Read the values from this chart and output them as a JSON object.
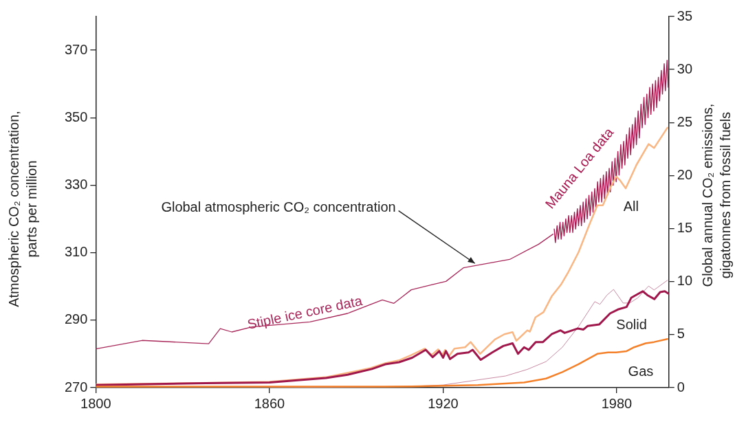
{
  "chart_data": {
    "type": "line",
    "xlim": [
      1800,
      1998
    ],
    "xticks": [
      1800,
      1860,
      1920,
      1980
    ],
    "ylim": [
      270,
      380
    ],
    "yticks": [
      270,
      290,
      310,
      330,
      350,
      370
    ],
    "y2lim": [
      0,
      35
    ],
    "y2ticks": [
      0,
      5,
      10,
      15,
      20,
      25,
      30,
      35
    ],
    "ylabel": "Atmospheric CO₂ concentration, parts per million",
    "y2label": "Global annual CO₂ emissions, gigatonnes from fossil fuels",
    "annotations": [
      {
        "text": "Global atmospheric CO₂ concentration",
        "x": 1931,
        "y": 306
      }
    ],
    "series": [
      {
        "name": "Stiple ice core data",
        "color": "#a8285a",
        "x": [
          1800,
          1816,
          1839,
          1843,
          1847,
          1854,
          1874,
          1887,
          1899,
          1903,
          1906,
          1909,
          1916,
          1921,
          1927,
          1943,
          1953,
          1958
        ],
        "values": [
          281.5,
          284,
          283,
          287.5,
          286.5,
          288,
          289.5,
          292,
          296,
          295,
          297,
          299,
          300.5,
          301.5,
          305.5,
          308,
          312.5,
          315.5
        ]
      },
      {
        "name": "Mauna Loa data",
        "color": "#a8184e",
        "x": [
          1958.4,
          1958.8,
          1959.4,
          1959.8,
          1960.4,
          1960.8,
          1961.4,
          1961.8,
          1962.4,
          1962.8,
          1963.4,
          1963.8,
          1964.4,
          1964.8,
          1965.4,
          1965.8,
          1966.4,
          1966.8,
          1967.4,
          1967.8,
          1968.4,
          1968.8,
          1969.4,
          1969.8,
          1970.4,
          1970.8,
          1971.4,
          1971.8,
          1972.4,
          1972.8,
          1973.4,
          1973.8,
          1974.4,
          1974.8,
          1975.4,
          1975.8,
          1976.4,
          1976.8,
          1977.4,
          1977.8,
          1978.4,
          1978.8,
          1979.4,
          1979.8,
          1980.4,
          1980.8,
          1981.4,
          1981.8,
          1982.4,
          1982.8,
          1983.4,
          1983.8,
          1984.4,
          1984.8,
          1985.4,
          1985.8,
          1986.4,
          1986.8,
          1987.4,
          1987.8,
          1988.4,
          1988.8,
          1989.4,
          1989.8,
          1990.4,
          1990.8,
          1991.4,
          1991.8,
          1992.4,
          1992.8,
          1993.4,
          1993.8,
          1994.4,
          1994.8,
          1995.4,
          1995.8,
          1996.4,
          1996.8,
          1997.4,
          1997.8
        ],
        "values": [
          317,
          313,
          318,
          314,
          319,
          314,
          319,
          315,
          320,
          316,
          321,
          316,
          321,
          316,
          322,
          317,
          323,
          318,
          324,
          318,
          325,
          319,
          326,
          320,
          327,
          321,
          328,
          322,
          329,
          323,
          331,
          325,
          332,
          325,
          333,
          326,
          334,
          327,
          335,
          328,
          337,
          330,
          338,
          331,
          340,
          333,
          342,
          335,
          343,
          336,
          345,
          338,
          347,
          339,
          348,
          341,
          350,
          342,
          352,
          344,
          354,
          347,
          356,
          348,
          357,
          350,
          359,
          351,
          360,
          352,
          361,
          353,
          362,
          355,
          364,
          357,
          366,
          358,
          367,
          359
        ]
      },
      {
        "name": "All",
        "color": "#f9b582",
        "axis": "y2",
        "x": [
          1800,
          1840,
          1860,
          1880,
          1895,
          1900,
          1905,
          1909,
          1913.7,
          1916,
          1918.3,
          1919.7,
          1920.7,
          1922,
          1923.9,
          1927.6,
          1929.5,
          1932.8,
          1937.9,
          1941.2,
          1944,
          1945.3,
          1949.1,
          1950,
          1951.9,
          1954.7,
          1957.5,
          1960.7,
          1963.1,
          1966.8,
          1970.5,
          1973.3,
          1975.2,
          1977.9,
          1979.8,
          1981.2,
          1983.1,
          1986.8,
          1991,
          1992.9,
          1997.5
        ],
        "values": [
          0.3,
          0.45,
          0.55,
          1,
          1.85,
          2.3,
          2.6,
          3.07,
          3.68,
          3.07,
          3.61,
          3.07,
          3.56,
          2.95,
          3.68,
          3.81,
          4.3,
          3.19,
          4.54,
          5.04,
          5.23,
          4.42,
          5.4,
          5.28,
          6.63,
          7.12,
          8.6,
          9.7,
          10.81,
          12.77,
          15.35,
          17.19,
          17.19,
          18.91,
          19.9,
          19.53,
          18.79,
          21,
          22.97,
          22.6,
          24.51
        ]
      },
      {
        "color": "#c98aa2",
        "axis": "y2",
        "x": [
          1860,
          1900,
          1909,
          1920,
          1932.3,
          1941.6,
          1949.1,
          1955.6,
          1961.2,
          1966.8,
          1972.4,
          1974.2,
          1976.6,
          1978.9,
          1982.2,
          1984.5,
          1987.3,
          1991,
          1992.9,
          1997.5
        ],
        "values": [
          0,
          0.1,
          0.12,
          0.25,
          0.74,
          1.1,
          1.72,
          2.46,
          3.81,
          5.77,
          8.11,
          7.86,
          8.72,
          9.26,
          7.98,
          7.98,
          8.47,
          9.58,
          9.21,
          10.12
        ]
      },
      {
        "name": "Solid",
        "color": "#a0174b",
        "axis": "y2",
        "x": [
          1800,
          1838,
          1860,
          1879.5,
          1887,
          1895.4,
          1900,
          1904.8,
          1909.3,
          1914,
          1916.4,
          1918.7,
          1920,
          1921,
          1922.4,
          1925,
          1928.8,
          1930.2,
          1933,
          1937,
          1940.8,
          1944,
          1945.9,
          1948,
          1949.6,
          1952,
          1954.5,
          1957.5,
          1960.6,
          1962,
          1966.6,
          1968.5,
          1970,
          1974,
          1977.7,
          1980.4,
          1983.4,
          1985,
          1989,
          1990.6,
          1993,
          1995,
          1996.6,
          1998
        ],
        "values": [
          0.24,
          0.42,
          0.49,
          0.91,
          1.22,
          1.76,
          2.2,
          2.4,
          2.82,
          3.56,
          2.87,
          3.44,
          2.82,
          3.44,
          2.7,
          3.19,
          3.32,
          3.56,
          2.63,
          3.32,
          3.93,
          4.18,
          3.19,
          3.81,
          3.56,
          4.3,
          4.3,
          5.04,
          5.4,
          5.16,
          5.58,
          5.48,
          5.82,
          5.97,
          7,
          7.37,
          7.61,
          8.47,
          9.09,
          8.72,
          8.35,
          9.01,
          9.09,
          8.84
        ]
      },
      {
        "name": "Gas",
        "color": "#f5802a",
        "axis": "y2",
        "x": [
          1800,
          1900,
          1909,
          1932,
          1948,
          1955.6,
          1961.2,
          1966.8,
          1973.3,
          1977,
          1979.8,
          1983.4,
          1986,
          1990,
          1992.9,
          1997.5
        ],
        "values": [
          0.1,
          0.1,
          0.12,
          0.25,
          0.49,
          0.86,
          1.47,
          2.21,
          3.19,
          3.32,
          3.32,
          3.44,
          3.81,
          4.18,
          4.3,
          4.59
        ]
      }
    ]
  }
}
